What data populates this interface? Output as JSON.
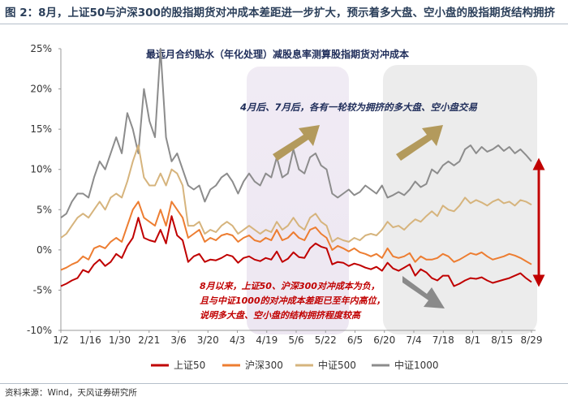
{
  "figure_title": "图 2：8月，上证50与沪深300的股指期货对冲成本差距进一步扩大，预示着多大盘、空小盘的股指期货结构拥挤",
  "source": "资料来源：Wind，天风证券研究所",
  "chart_data": {
    "type": "line",
    "title": "最远月合约贴水（年化处理）减股息率测算股指期货对冲成本",
    "x_ticks": [
      "1/2",
      "1/16",
      "1/30",
      "2/21",
      "3/6",
      "3/20",
      "4/3",
      "4/19",
      "5/6",
      "5/22",
      "6/5",
      "6/20",
      "7/4",
      "7/18",
      "8/1",
      "8/15",
      "8/29"
    ],
    "y_ticks": [
      "25%",
      "20%",
      "15%",
      "10%",
      "5%",
      "0%",
      "-5%",
      "-10%"
    ],
    "ylim": [
      -10,
      25
    ],
    "y_unit": "%",
    "grid": false,
    "legend_position": "bottom",
    "series": [
      {
        "name": "上证50",
        "color": "#c00000",
        "values": [
          -4.5,
          -4.2,
          -3.8,
          -3.5,
          -2.5,
          -2.8,
          -1.8,
          -1.2,
          -2,
          -1.5,
          -0.5,
          -1,
          0.5,
          1.5,
          4,
          1.5,
          1.2,
          1,
          2.5,
          0.8,
          4.2,
          1.8,
          1.2,
          -1.5,
          -0.8,
          -0.5,
          -1.5,
          -1.2,
          -1.3,
          -1,
          -0.6,
          -0.8,
          -1.6,
          -1,
          -0.8,
          -1.2,
          -1.4,
          -1,
          -1.2,
          -0.2,
          -1.5,
          -1.1,
          -0.3,
          -0.9,
          -1,
          0.2,
          0.8,
          0.4,
          0.2,
          -1.8,
          -1.5,
          -1.6,
          -2,
          -1.7,
          -1.9,
          -2.2,
          -2.4,
          -2.1,
          -2.6,
          -1.6,
          -2.3,
          -2.6,
          -2.2,
          -1.8,
          -3.2,
          -2.4,
          -2.8,
          -3.5,
          -3.8,
          -3.2,
          -3.2,
          -4.5,
          -4.2,
          -3.8,
          -3.5,
          -3.6,
          -3.4,
          -3.8,
          -4.1,
          -3.9,
          -3.7,
          -3.5,
          -3.2,
          -2.9,
          -3.5,
          -4
        ]
      },
      {
        "name": "沪深300",
        "color": "#ed7d31",
        "values": [
          -2.5,
          -2.2,
          -1.8,
          -1.5,
          -0.8,
          -1.2,
          0.2,
          0.5,
          0.2,
          1,
          1.5,
          1,
          3,
          5,
          6,
          4,
          3.5,
          3,
          5,
          3,
          6,
          5,
          4,
          1.5,
          2,
          2.5,
          1,
          1.5,
          1.2,
          1.8,
          2,
          1.8,
          1,
          1.5,
          1.8,
          1.2,
          1,
          1.5,
          1.2,
          2.5,
          1.2,
          1.5,
          2.2,
          1.5,
          1.2,
          2.5,
          2.8,
          2,
          1.5,
          0,
          0.5,
          0.2,
          -0.2,
          0.2,
          -0.3,
          -0.5,
          -0.8,
          -0.5,
          -1,
          0.2,
          -0.8,
          -1,
          -0.8,
          -0.4,
          -1.5,
          -0.8,
          -1.2,
          -1.2,
          -1,
          -0.5,
          -0.8,
          -1.5,
          -1.2,
          -0.8,
          -0.4,
          -0.6,
          -0.3,
          -0.8,
          -1.2,
          -1,
          -0.8,
          -0.5,
          -0.7,
          -1,
          -1.4,
          -1.8
        ]
      },
      {
        "name": "中证500",
        "color": "#d6b47d",
        "values": [
          1.5,
          2,
          3,
          4,
          4.5,
          4,
          5,
          6,
          5,
          6.5,
          7,
          6.5,
          8.5,
          11,
          13,
          9,
          8,
          8,
          9.5,
          8,
          10,
          9.5,
          8,
          3,
          3,
          3.5,
          2,
          2.5,
          2.2,
          3,
          3.5,
          3,
          2,
          2.5,
          3,
          2.5,
          2,
          2.5,
          2.2,
          3.5,
          2.5,
          3,
          4,
          3,
          2.5,
          4,
          4.5,
          3.5,
          3,
          1,
          1.5,
          1.2,
          1,
          1.5,
          1.2,
          1.8,
          2,
          1.8,
          2.5,
          3.5,
          2.8,
          3,
          2.5,
          3.2,
          3.8,
          3.5,
          4.2,
          4.8,
          4.2,
          5.5,
          5,
          4.8,
          5.5,
          6.5,
          5.8,
          6.2,
          5.9,
          5.5,
          6,
          6.3,
          5.8,
          6,
          5.5,
          6.2,
          6,
          5.6
        ]
      },
      {
        "name": "中证1000",
        "color": "#8c8c8c",
        "values": [
          4,
          4.5,
          6,
          7,
          7,
          6.5,
          9,
          11,
          10,
          12,
          14,
          12,
          17,
          15,
          12,
          20,
          16,
          14,
          25,
          14,
          11,
          12,
          10,
          8,
          7.5,
          8,
          6,
          7.5,
          8,
          9,
          9.5,
          8.5,
          7,
          8.5,
          9.5,
          8.5,
          8,
          9.5,
          9,
          11.5,
          9,
          9.5,
          12.5,
          10,
          9.5,
          11.5,
          12,
          10.5,
          10,
          7,
          6.5,
          7,
          7.5,
          6.8,
          7.2,
          8,
          7.5,
          7,
          8,
          6.5,
          6.8,
          7.2,
          6.8,
          7.5,
          8.5,
          7.8,
          8.2,
          10,
          9.5,
          10.5,
          11,
          10.5,
          11,
          12.5,
          13,
          12,
          12.8,
          12.2,
          12.5,
          13,
          12.3,
          12.8,
          12,
          12.5,
          11.8,
          11
        ]
      }
    ],
    "annotations": [
      {
        "text": "4月后、7月后，各有一轮较为拥挤的多大盘、空小盘交易",
        "color": "#1f2d5a"
      },
      {
        "text": "8月以来，上证50、沪深300对冲成本为负，",
        "color": "#c00000"
      },
      {
        "text": "且与中证1000的对冲成本差距已至年内高位，",
        "color": "#c00000"
      },
      {
        "text": "说明多大盘、空小盘的结构拥挤程度较高",
        "color": "#c00000"
      }
    ]
  }
}
